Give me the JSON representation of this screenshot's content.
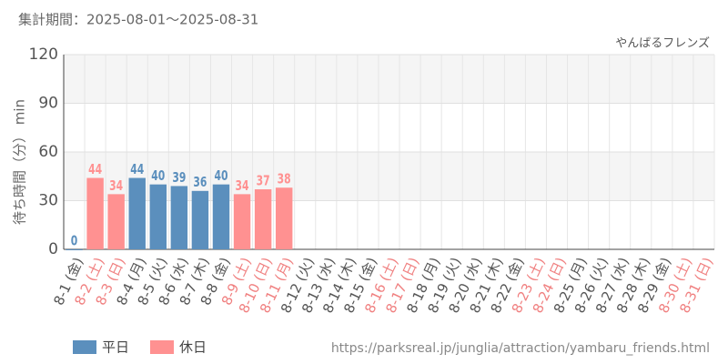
{
  "period": "集計期間：2025-08-01～2025-08-31",
  "attraction": "やんばるフレンズ",
  "source": "https://parksreal.jp/junglia/attraction/yambaru_friends.html",
  "chart_data": {
    "type": "bar",
    "y_label": "待ち時間（分） min",
    "categories": [
      "8-1 (金)",
      "8-2 (土)",
      "8-3 (日)",
      "8-4 (月)",
      "8-5 (火)",
      "8-6 (水)",
      "8-7 (木)",
      "8-8 (金)",
      "8-9 (土)",
      "8-10 (日)",
      "8-11 (月)",
      "8-12 (火)",
      "8-13 (水)",
      "8-14 (木)",
      "8-15 (金)",
      "8-16 (土)",
      "8-17 (日)",
      "8-18 (月)",
      "8-19 (火)",
      "8-20 (水)",
      "8-21 (木)",
      "8-22 (金)",
      "8-23 (土)",
      "8-24 (日)",
      "8-25 (月)",
      "8-26 (火)",
      "8-27 (水)",
      "8-28 (木)",
      "8-29 (金)",
      "8-30 (土)",
      "8-31 (日)"
    ],
    "category_colors": [
      "#555",
      "#f08080",
      "#f08080",
      "#555",
      "#555",
      "#555",
      "#555",
      "#555",
      "#f08080",
      "#f08080",
      "#f08080",
      "#555",
      "#555",
      "#555",
      "#555",
      "#f08080",
      "#f08080",
      "#555",
      "#555",
      "#555",
      "#555",
      "#555",
      "#f08080",
      "#f08080",
      "#555",
      "#555",
      "#555",
      "#555",
      "#555",
      "#f08080",
      "#f08080"
    ],
    "series": [
      {
        "name": "平日",
        "color": "#5b8fbd",
        "values": [
          0,
          null,
          null,
          44,
          40,
          39,
          36,
          40,
          null,
          null,
          null,
          null,
          null,
          null,
          null,
          null,
          null,
          null,
          null,
          null,
          null,
          null,
          null,
          null,
          null,
          null,
          null,
          null,
          null,
          null,
          null
        ]
      },
      {
        "name": "休日",
        "color": "#ff9191",
        "values": [
          null,
          44,
          34,
          null,
          null,
          null,
          null,
          null,
          34,
          37,
          38,
          null,
          null,
          null,
          null,
          null,
          null,
          null,
          null,
          null,
          null,
          null,
          null,
          null,
          null,
          null,
          null,
          null,
          null,
          null,
          null
        ]
      }
    ],
    "ylim": [
      0,
      120
    ],
    "yticks": [
      0,
      30,
      60,
      90,
      120
    ],
    "grid": true
  }
}
